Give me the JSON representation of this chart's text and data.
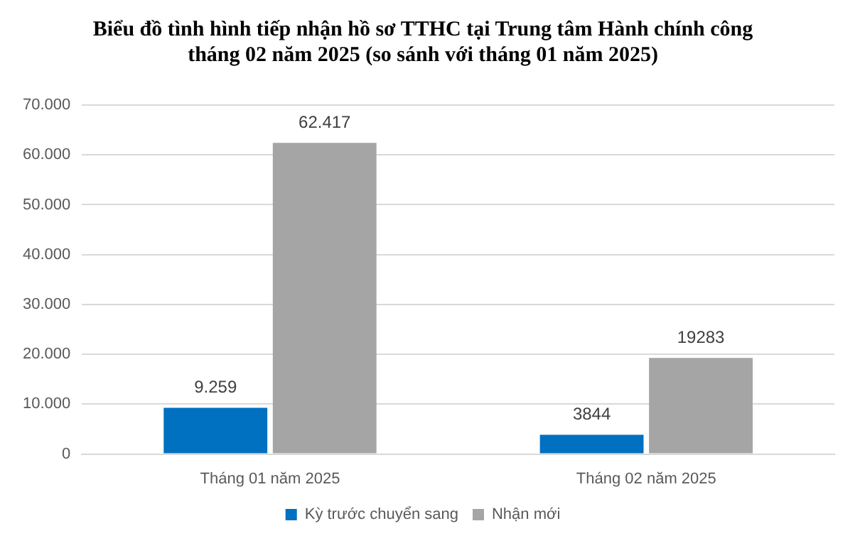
{
  "chart_data": {
    "type": "bar",
    "title": "Biểu đồ tình hình tiếp nhận hồ sơ TTHC tại Trung tâm Hành chính công\ntháng 02 năm 2025 (so sánh với tháng 01 năm 2025)",
    "categories": [
      "Tháng 01 năm 2025",
      "Tháng 02 năm 2025"
    ],
    "series": [
      {
        "name": "Kỳ trước chuyển sang",
        "color": "#0070c0",
        "values": [
          9259,
          3844
        ],
        "value_labels": [
          "9.259",
          "3844"
        ]
      },
      {
        "name": "Nhận mới",
        "color": "#a5a5a5",
        "values": [
          62417,
          19283
        ],
        "value_labels": [
          "62.417",
          "19283"
        ]
      }
    ],
    "ylim": [
      0,
      70000
    ],
    "yticks": [
      0,
      {
        "value": 10000,
        "label": "10.000"
      },
      {
        "value": 20000,
        "label": "20.000"
      },
      {
        "value": 30000,
        "label": "30.000"
      },
      {
        "value": 40000,
        "label": "40.000"
      },
      {
        "value": 50000,
        "label": "50.000"
      },
      {
        "value": 60000,
        "label": "60.000"
      },
      {
        "value": 70000,
        "label": "70.000"
      }
    ],
    "grid": "y",
    "legend": "bottom"
  }
}
